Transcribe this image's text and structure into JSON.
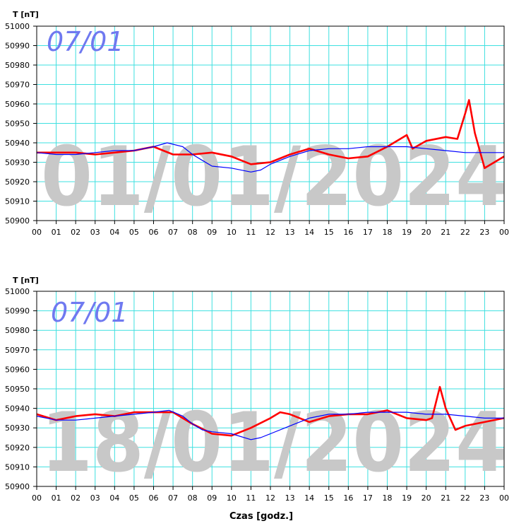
{
  "chart_data": [
    {
      "type": "line",
      "ylabel": "T [nT]",
      "date_stamp": "07/01",
      "watermark": "01/01/2024",
      "ylim": [
        50900,
        51000
      ],
      "y_ticks": [
        "51000",
        "50990",
        "50980",
        "50970",
        "50960",
        "50950",
        "50940",
        "50930",
        "50920",
        "50910",
        "50900"
      ],
      "x_ticks": [
        "00",
        "01",
        "02",
        "03",
        "04",
        "05",
        "06",
        "07",
        "08",
        "09",
        "10",
        "11",
        "12",
        "13",
        "14",
        "15",
        "16",
        "17",
        "18",
        "19",
        "20",
        "21",
        "22",
        "23",
        "00"
      ],
      "grid": true,
      "series": [
        {
          "color": "#ff0000",
          "x": [
            0,
            1,
            2,
            3,
            4,
            5,
            6,
            7,
            8,
            9,
            10,
            11,
            12,
            13,
            14,
            15,
            16,
            17,
            18,
            19,
            19.3,
            20,
            21,
            21.6,
            22,
            22.2,
            22.5,
            23,
            23.5,
            24
          ],
          "y": [
            50935,
            50935,
            50935,
            50934,
            50935,
            50936,
            50938,
            50934,
            50934,
            50935,
            50933,
            50929,
            50930,
            50934,
            50937,
            50934,
            50932,
            50933,
            50938,
            50944,
            50937,
            50941,
            50943,
            50942,
            50955,
            50962,
            50945,
            50927,
            50930,
            50933
          ]
        },
        {
          "color": "#0000ff",
          "x": [
            0,
            1,
            2,
            3,
            4,
            5,
            6,
            6.7,
            7.5,
            8,
            8.5,
            9,
            10,
            11,
            11.5,
            12,
            13,
            14,
            15,
            16,
            17,
            18,
            19,
            20,
            21,
            22,
            23,
            24
          ],
          "y": [
            50935,
            50934,
            50934,
            50935,
            50936,
            50936,
            50938,
            50940,
            50938,
            50934,
            50931,
            50928,
            50927,
            50925,
            50926,
            50929,
            50933,
            50936,
            50937,
            50937,
            50938,
            50938,
            50938,
            50937,
            50936,
            50935,
            50935,
            50935
          ]
        }
      ]
    },
    {
      "type": "line",
      "ylabel": "T [nT]",
      "xlabel": "Czas [godz.]",
      "date_stamp": "07/01",
      "watermark": "18/01/2024",
      "ylim": [
        50900,
        51000
      ],
      "y_ticks": [
        "51000",
        "50990",
        "50980",
        "50970",
        "50960",
        "50950",
        "50940",
        "50930",
        "50920",
        "50910",
        "50900"
      ],
      "x_ticks": [
        "00",
        "01",
        "02",
        "03",
        "04",
        "05",
        "06",
        "07",
        "08",
        "09",
        "10",
        "11",
        "12",
        "13",
        "14",
        "15",
        "16",
        "17",
        "18",
        "19",
        "20",
        "21",
        "22",
        "23",
        "00"
      ],
      "grid": true,
      "series": [
        {
          "color": "#ff0000",
          "x": [
            0,
            1,
            2,
            3,
            4,
            5,
            6,
            7,
            8,
            9,
            10,
            11,
            12,
            12.5,
            13,
            14,
            15,
            16,
            17,
            18,
            19,
            20,
            20.3,
            20.7,
            21,
            21.5,
            22,
            23,
            24
          ],
          "y": [
            50937,
            50934,
            50936,
            50937,
            50936,
            50938,
            50938,
            50938,
            50932,
            50927,
            50926,
            50930,
            50935,
            50938,
            50937,
            50933,
            50936,
            50937,
            50937,
            50939,
            50935,
            50934,
            50935,
            50951,
            50940,
            50929,
            50931,
            50933,
            50935
          ]
        },
        {
          "color": "#0000ff",
          "x": [
            0,
            1,
            2,
            3,
            4,
            5,
            6,
            6.8,
            7.5,
            8,
            8.5,
            9,
            10,
            11,
            11.5,
            12,
            13,
            14,
            15,
            16,
            17,
            18,
            19,
            20,
            21,
            22,
            23,
            24
          ],
          "y": [
            50936,
            50934,
            50934,
            50935,
            50936,
            50937,
            50938,
            50939,
            50936,
            50932,
            50929,
            50928,
            50927,
            50924,
            50925,
            50927,
            50931,
            50935,
            50937,
            50937,
            50938,
            50938,
            50938,
            50937,
            50937,
            50936,
            50935,
            50935
          ]
        }
      ]
    }
  ]
}
